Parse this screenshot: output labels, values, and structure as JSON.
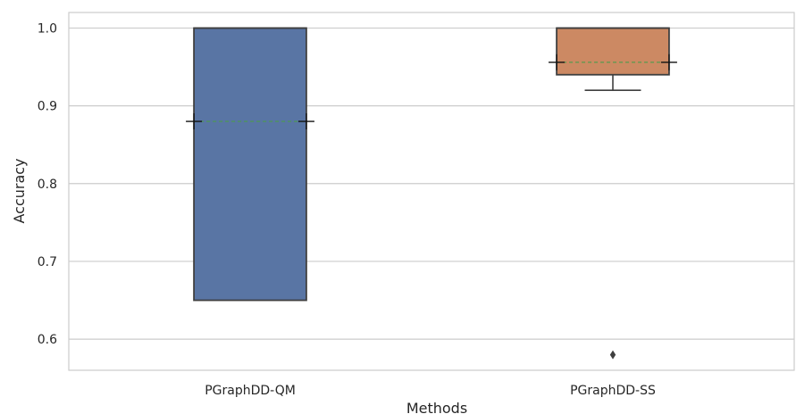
{
  "chart_data": {
    "type": "box",
    "xlabel": "Methods",
    "ylabel": "Accuracy",
    "ylim": [
      0.56,
      1.02
    ],
    "yticks": [
      "0.6",
      "0.7",
      "0.8",
      "0.9",
      "1.0"
    ],
    "ytick_values": [
      0.6,
      0.7,
      0.8,
      0.9,
      1.0
    ],
    "grid": "horizontal",
    "categories": [
      "PGraphDD-QM",
      "PGraphDD-SS"
    ],
    "boxes": [
      {
        "category": "PGraphDD-QM",
        "color": "#5975a4",
        "whisker_low": 0.65,
        "q1": 0.65,
        "median": 1.0,
        "q3": 1.0,
        "whisker_high": 1.0,
        "mean": 0.88,
        "outliers": []
      },
      {
        "category": "PGraphDD-SS",
        "color": "#cc8963",
        "whisker_low": 0.92,
        "q1": 0.94,
        "median": 1.0,
        "q3": 1.0,
        "whisker_high": 1.0,
        "mean": 0.956,
        "outliers": [
          0.58
        ]
      }
    ],
    "mean_line_color": "#4c9c4c",
    "edge_color": "#3f3f3f"
  }
}
